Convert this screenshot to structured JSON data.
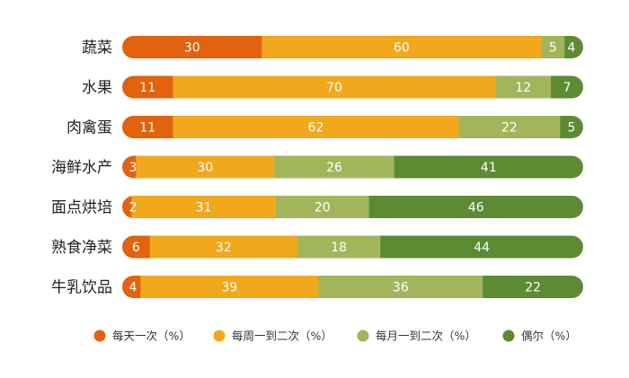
{
  "chart_data": {
    "type": "bar",
    "orientation": "horizontal",
    "stacked": true,
    "categories": [
      "蔬菜",
      "水果",
      "肉禽蛋",
      "海鲜水产",
      "面点烘培",
      "熟食净菜",
      "牛乳饮品"
    ],
    "series": [
      {
        "name": "每天一次（%）",
        "color": "#e2620e",
        "values": [
          30,
          11,
          11,
          3,
          2,
          6,
          4
        ]
      },
      {
        "name": "每周一到二次（%）",
        "color": "#f1a81d",
        "values": [
          60,
          70,
          62,
          30,
          31,
          32,
          39
        ]
      },
      {
        "name": "每月一到二次（%）",
        "color": "#a3b55a",
        "values": [
          5,
          12,
          22,
          26,
          20,
          18,
          36
        ]
      },
      {
        "name": "偶尔（%）",
        "color": "#5c8b33",
        "values": [
          4,
          7,
          5,
          41,
          46,
          44,
          22
        ]
      }
    ],
    "legend_position": "bottom",
    "grid": false
  }
}
